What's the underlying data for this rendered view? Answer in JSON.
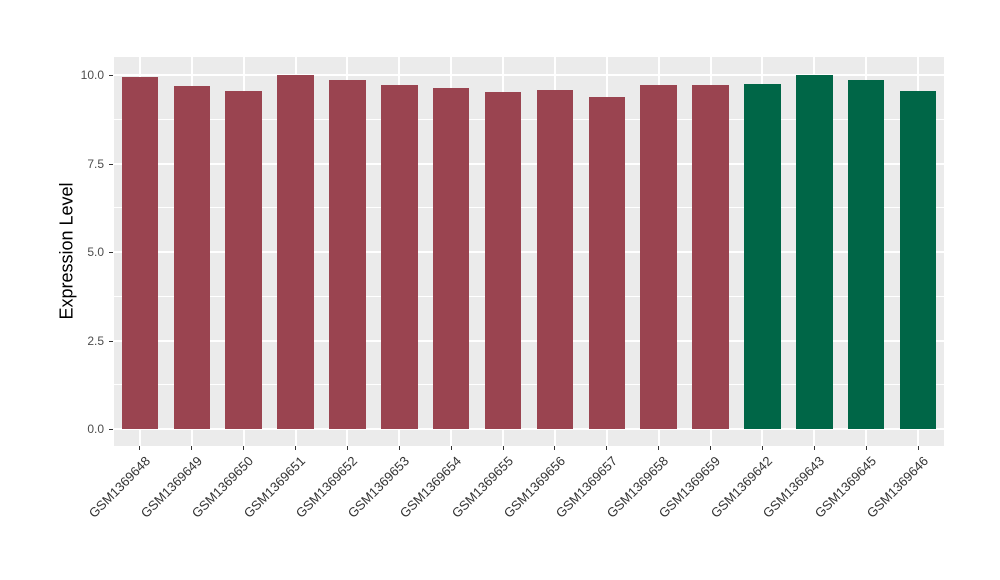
{
  "chart_data": {
    "type": "bar",
    "title": "",
    "xlabel": "",
    "ylabel": "Expression Level",
    "categories": [
      "GSM1369648",
      "GSM1369649",
      "GSM1369650",
      "GSM1369651",
      "GSM1369652",
      "GSM1369653",
      "GSM1369654",
      "GSM1369655",
      "GSM1369656",
      "GSM1369657",
      "GSM1369658",
      "GSM1369659",
      "GSM1369642",
      "GSM1369643",
      "GSM1369645",
      "GSM1369646"
    ],
    "values": [
      9.95,
      9.7,
      9.55,
      10.02,
      9.86,
      9.71,
      9.63,
      9.54,
      9.57,
      9.38,
      9.71,
      9.72,
      9.75,
      10.0,
      9.86,
      9.55
    ],
    "bar_groups": [
      "red",
      "red",
      "red",
      "red",
      "red",
      "red",
      "red",
      "red",
      "red",
      "red",
      "red",
      "red",
      "green",
      "green",
      "green",
      "green"
    ],
    "group_colors": {
      "red": "#9A4450",
      "green": "#006647"
    },
    "ylim": [
      -0.47,
      10.51
    ],
    "ytick_labels": [
      "0.0",
      "2.5",
      "5.0",
      "7.5",
      "10.0"
    ],
    "ytick_values": [
      0,
      2.5,
      5,
      7.5,
      10
    ],
    "minor_ytick_values": [
      1.25,
      3.75,
      6.25,
      8.75
    ],
    "grid": "on",
    "legend_position": "none",
    "panel_bg": "#EBEBEB",
    "grid_color": "#FFFFFF",
    "tick_color": "#333333",
    "ytick_text_color": "#4D4D4D",
    "xtick_text_color": "#333333"
  }
}
